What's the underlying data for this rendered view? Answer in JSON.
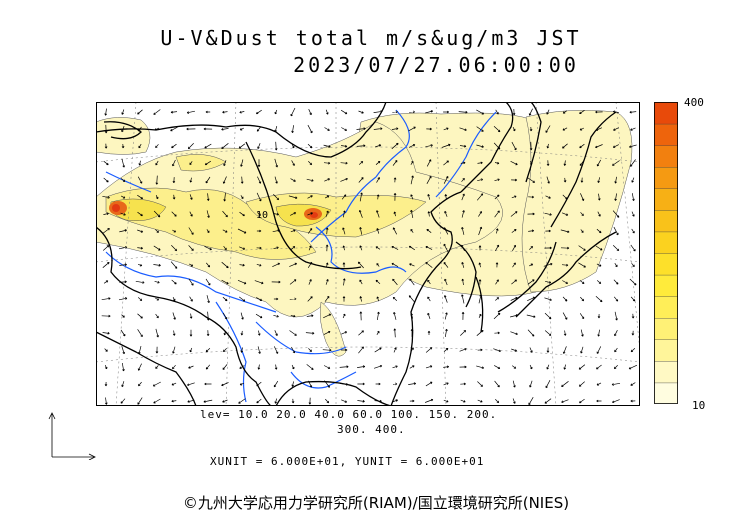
{
  "header": {
    "title": "U-V&Dust total m/s&ug/m3 JST",
    "datetime": "2023/07/27.06:00:00"
  },
  "legend": {
    "max_label": "400",
    "min_label": "10",
    "colors": [
      "#fffde0",
      "#fff9c4",
      "#fff59a",
      "#fff176",
      "#ffee58",
      "#ffeb3b",
      "#fde02a",
      "#fbd21f",
      "#f9c21a",
      "#f7b015",
      "#f59a12",
      "#f2800f",
      "#ee640c",
      "#e84a0a"
    ]
  },
  "levels": {
    "line1": "lev= 10.0 20.0 40.0 60.0 100. 150. 200.",
    "line2": "300. 400."
  },
  "units": "XUNIT = 6.000E+01, YUNIT = 6.000E+01",
  "credit": "©九州大学応用力学研究所(RIAM)/国立環境研究所(NIES)",
  "map": {
    "contour_label": "10",
    "colors": {
      "land_outline": "#000000",
      "river": "#1a5cff",
      "grid": "#666666",
      "light": "#fdf6c0",
      "medium": "#fcef8c",
      "strong": "#f6e24e",
      "core": "#e8681a",
      "hot": "#e23a12"
    }
  }
}
